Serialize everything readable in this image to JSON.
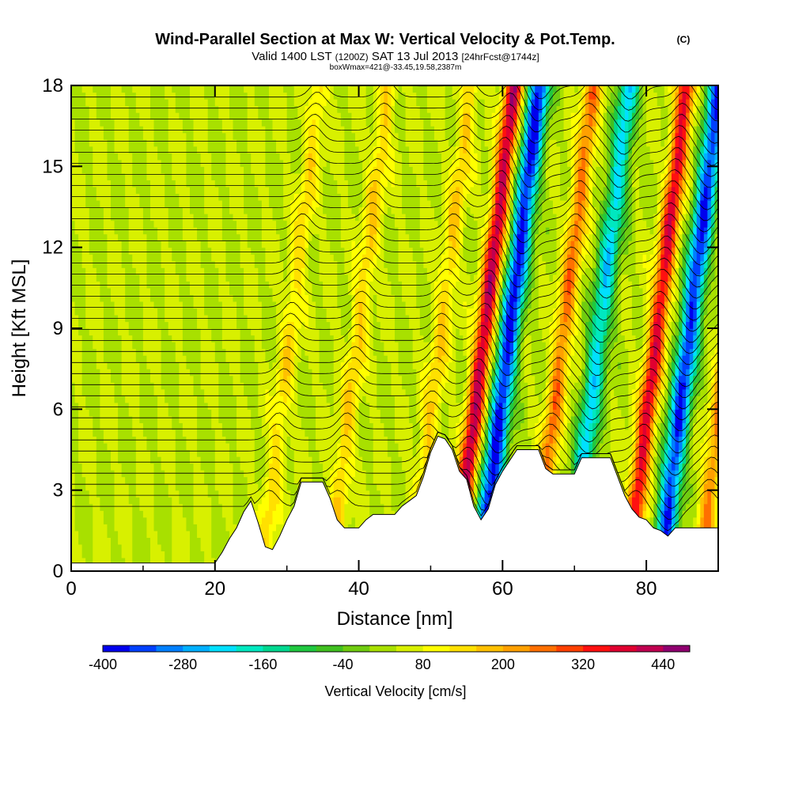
{
  "header": {
    "title": "Wind-Parallel Section at Max W: Vertical Velocity & Pot.Temp.",
    "copyright": "(C)",
    "valid_prefix": "Valid 1400 LST",
    "valid_utc": "(1200Z)",
    "valid_date": "SAT 13 Jul 2013",
    "forecast": "[24hrFcst@1744z]",
    "box_info": "boxWmax=421@-33.45,19.58,2387m"
  },
  "chart_data": {
    "type": "heatmap",
    "title": "Wind-Parallel Section at Max W: Vertical Velocity & Pot.Temp.",
    "xlabel": "Distance [nm]",
    "ylabel": "Height [Kft MSL]",
    "xlim": [
      0,
      90
    ],
    "ylim": [
      0,
      18
    ],
    "x_ticks": [
      "0",
      "20",
      "40",
      "60",
      "80"
    ],
    "y_ticks": [
      "0",
      "3",
      "6",
      "9",
      "12",
      "15",
      "18"
    ],
    "colorbar": {
      "label": "Vertical Velocity [cm/s]",
      "tick_labels": [
        "-400",
        "-280",
        "-160",
        "-40",
        "80",
        "200",
        "320",
        "440"
      ],
      "levels": [
        -400,
        -360,
        -320,
        -280,
        -240,
        -200,
        -160,
        -120,
        -80,
        -40,
        0,
        40,
        80,
        120,
        160,
        200,
        240,
        280,
        320,
        360,
        400,
        440,
        480
      ],
      "colors": [
        "#0000ee",
        "#0040ff",
        "#0080ff",
        "#00b0ff",
        "#00e0ff",
        "#00e8c0",
        "#00d890",
        "#20c840",
        "#40c020",
        "#70cc10",
        "#a8e000",
        "#d8f000",
        "#ffff00",
        "#ffe000",
        "#ffc000",
        "#ffa000",
        "#ff7000",
        "#ff4000",
        "#ff1010",
        "#e00030",
        "#c00050",
        "#900070"
      ]
    },
    "terrain_kft": [
      [
        0,
        0.3
      ],
      [
        20,
        0.3
      ],
      [
        21,
        0.7
      ],
      [
        22,
        1.2
      ],
      [
        23,
        1.6
      ],
      [
        24,
        2.2
      ],
      [
        25,
        2.6
      ],
      [
        26,
        1.8
      ],
      [
        27,
        0.9
      ],
      [
        28,
        0.8
      ],
      [
        29,
        1.3
      ],
      [
        30,
        1.9
      ],
      [
        31,
        2.4
      ],
      [
        32,
        3.3
      ],
      [
        35,
        3.3
      ],
      [
        36,
        2.7
      ],
      [
        37,
        1.9
      ],
      [
        38,
        1.6
      ],
      [
        40,
        1.6
      ],
      [
        41,
        1.9
      ],
      [
        42,
        2.1
      ],
      [
        45,
        2.1
      ],
      [
        46,
        2.4
      ],
      [
        47,
        2.6
      ],
      [
        48,
        2.8
      ],
      [
        49,
        3.5
      ],
      [
        50,
        4.4
      ],
      [
        51,
        5.0
      ],
      [
        52,
        4.9
      ],
      [
        53,
        4.5
      ],
      [
        54,
        3.7
      ],
      [
        55,
        3.4
      ],
      [
        56,
        2.4
      ],
      [
        57,
        1.9
      ],
      [
        58,
        2.3
      ],
      [
        59,
        3.2
      ],
      [
        60,
        3.7
      ],
      [
        61,
        4.1
      ],
      [
        62,
        4.5
      ],
      [
        65,
        4.5
      ],
      [
        66,
        3.8
      ],
      [
        67,
        3.6
      ],
      [
        70,
        3.6
      ],
      [
        71,
        4.2
      ],
      [
        75,
        4.2
      ],
      [
        76,
        3.5
      ],
      [
        77,
        2.8
      ],
      [
        78,
        2.3
      ],
      [
        79,
        2.0
      ],
      [
        80,
        1.9
      ],
      [
        81,
        1.6
      ],
      [
        82,
        1.5
      ],
      [
        83,
        1.3
      ],
      [
        84,
        1.6
      ],
      [
        90,
        1.6
      ]
    ],
    "updraft_bands": [
      {
        "x0": 26.5,
        "slope_nm_per_kft": 0.45,
        "max_cm_s": 140
      },
      {
        "x0": 36.0,
        "slope_nm_per_kft": 0.45,
        "max_cm_s": 160
      },
      {
        "x0": 47.5,
        "slope_nm_per_kft": 0.45,
        "max_cm_s": 160
      },
      {
        "x0": 53.5,
        "slope_nm_per_kft": 0.45,
        "max_cm_s": 421
      },
      {
        "x0": 64.5,
        "slope_nm_per_kft": 0.45,
        "max_cm_s": 260
      },
      {
        "x0": 77.5,
        "slope_nm_per_kft": 0.45,
        "max_cm_s": 380
      },
      {
        "x0": 87.5,
        "slope_nm_per_kft": 0.45,
        "max_cm_s": 240
      }
    ],
    "downdraft_bands": [
      {
        "x0": 57.0,
        "slope_nm_per_kft": 0.45,
        "min_cm_s": -380
      },
      {
        "x0": 69.5,
        "slope_nm_per_kft": 0.45,
        "min_cm_s": -220
      },
      {
        "x0": 82.0,
        "slope_nm_per_kft": 0.45,
        "min_cm_s": -360
      }
    ],
    "theta_contours": {
      "line_color": "#000000",
      "count": 40,
      "y_start_kft": 2.4,
      "y_step_kft": 0.41
    }
  }
}
